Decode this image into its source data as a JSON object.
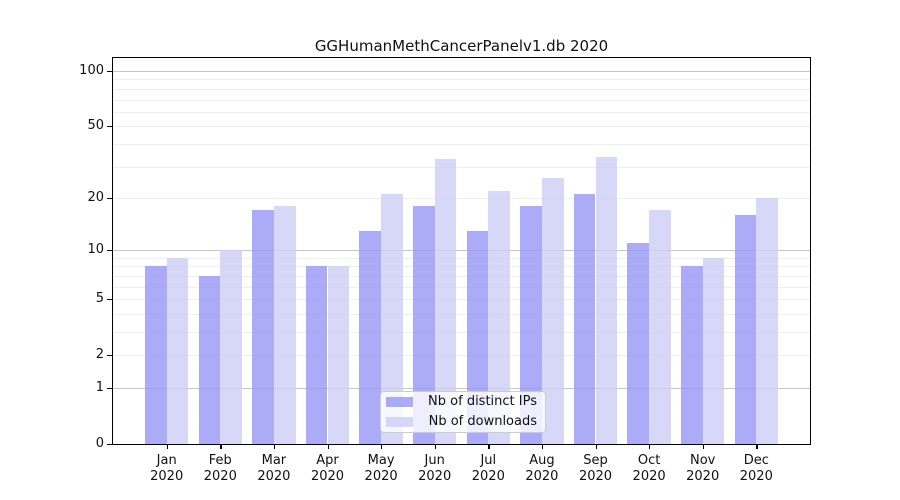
{
  "title": "GGHumanMethCancerPanelv1.db 2020",
  "legend": {
    "items": [
      {
        "label": "Nb of distinct IPs"
      },
      {
        "label": "Nb of downloads"
      }
    ]
  },
  "chart_data": {
    "type": "bar",
    "title": "GGHumanMethCancerPanelv1.db 2020",
    "categories": [
      "Jan",
      "Feb",
      "Mar",
      "Apr",
      "May",
      "Jun",
      "Jul",
      "Aug",
      "Sep",
      "Oct",
      "Nov",
      "Dec"
    ],
    "year_label": "2020",
    "series": [
      {
        "name": "Nb of distinct IPs",
        "color": "rgba(150,150,246,0.8)",
        "values": [
          8,
          7,
          17,
          8,
          13,
          18,
          13,
          18,
          21,
          11,
          8,
          16
        ]
      },
      {
        "name": "Nb of downloads",
        "color": "rgba(205,205,246,0.8)",
        "values": [
          9,
          10,
          18,
          8,
          21,
          33,
          22,
          26,
          34,
          17,
          9,
          20
        ]
      }
    ],
    "y_axis": {
      "scale": "log10(1+v)",
      "tick_values": [
        100,
        50,
        20,
        10,
        5,
        2,
        1,
        0
      ],
      "tick_labels": [
        "100",
        "50",
        "20",
        "10",
        "5",
        "2",
        "1",
        "0"
      ],
      "ylim": [
        0,
        117
      ]
    },
    "grid": {
      "grid_on": true,
      "major_lines": [
        1,
        10,
        100
      ],
      "minor_lines": [
        2,
        3,
        4,
        5,
        6,
        7,
        8,
        9,
        20,
        30,
        40,
        50,
        60,
        70,
        80,
        90
      ]
    },
    "legend_position": "inside-bottom-center"
  },
  "colors": {
    "bar_ips": "rgba(150,150,246,0.8)",
    "bar_downloads": "rgba(205,205,246,0.8)",
    "grid_major": "#c6c6c6",
    "grid_minor": "#efefef",
    "axis_line": "#000000",
    "text": "#111111"
  }
}
